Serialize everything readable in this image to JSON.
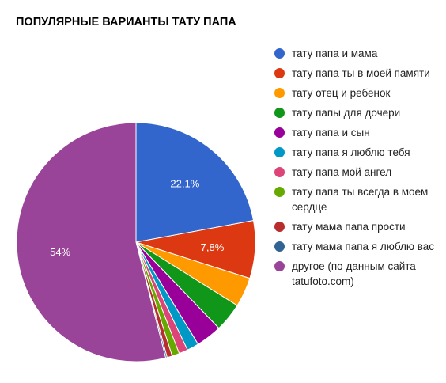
{
  "chart_data": {
    "type": "pie",
    "title": "ПОПУЛЯРНЫЕ ВАРИАНТЫ ТАТУ ПАПА",
    "slices": [
      {
        "label": "тату папа и мама",
        "value": 22.1,
        "color": "#3366cc",
        "data_label": "22,1%"
      },
      {
        "label": "тату папа ты в моей памяти",
        "value": 7.8,
        "color": "#dc3912",
        "data_label": "7,8%"
      },
      {
        "label": "тату отец и ребенок",
        "value": 4.0,
        "color": "#ff9900",
        "data_label": ""
      },
      {
        "label": "тату папы для дочери",
        "value": 3.9,
        "color": "#109618",
        "data_label": ""
      },
      {
        "label": "тату папа и сын",
        "value": 3.5,
        "color": "#990099",
        "data_label": ""
      },
      {
        "label": "тату папа я люблю тебя",
        "value": 1.6,
        "color": "#0099c6",
        "data_label": ""
      },
      {
        "label": "тату папа мой ангел",
        "value": 1.2,
        "color": "#dd4477",
        "data_label": ""
      },
      {
        "label": "тату папа ты всегда в моем сердце",
        "value": 1.0,
        "color": "#66aa00",
        "data_label": ""
      },
      {
        "label": "тату мама папа прости",
        "value": 0.7,
        "color": "#b82e2e",
        "data_label": ""
      },
      {
        "label": "тату мама папа я люблю вас",
        "value": 0.2,
        "color": "#316395",
        "data_label": ""
      },
      {
        "label": "другое (по данным сайта tatufoto.com)",
        "value": 54.0,
        "color": "#994499",
        "data_label": "54%"
      }
    ],
    "legend_position": "right"
  }
}
